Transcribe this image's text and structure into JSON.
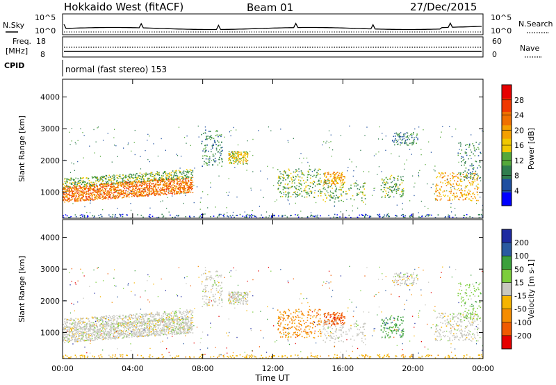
{
  "header": {
    "station": "Hokkaido West (fitACF)",
    "beam": "Beam 01",
    "date": "27/Dec/2015"
  },
  "top_panels": {
    "nsky_label": "N.Sky",
    "nsky_ticks": [
      "10^5",
      "10^0"
    ],
    "nsearch_label": "N.Search",
    "nsearch_ticks": [
      "10^5",
      "10^0"
    ],
    "freq_label_1": "Freq.",
    "freq_label_2": "[MHz]",
    "freq_ticks": [
      "18",
      "8"
    ],
    "nave_label": "Nave",
    "nave_ticks": [
      "60",
      "0"
    ],
    "cpid_label": "CPID",
    "cpid_text": "normal (fast stereo) 153"
  },
  "colors": {
    "power": [
      "#0000ff",
      "#1e4fa0",
      "#2f7d4e",
      "#55a83a",
      "#f0c800",
      "#f5a000",
      "#f07000",
      "#f03800",
      "#e60000"
    ],
    "velocity": [
      "#e60000",
      "#f05a00",
      "#f58c00",
      "#f5b400",
      "#c8c8c0",
      "#7ccd3c",
      "#3ca03c",
      "#2a5aa0",
      "#1e2aa0"
    ]
  },
  "chart_data": [
    {
      "type": "heatmap",
      "name": "power",
      "xlabel": "",
      "ylabel": "Slant Range [km]",
      "x_ticks": [
        "00:00",
        "04:00",
        "08:00",
        "12:00",
        "16:00",
        "20:00",
        "00:00"
      ],
      "y_ticks": [
        1000,
        2000,
        3000,
        4000
      ],
      "ylim": [
        180,
        4560
      ],
      "colorbar_label": "Power [dB]",
      "colorbar_ticks": [
        4,
        8,
        12,
        16,
        20,
        24,
        28
      ],
      "colorbar_range": [
        0,
        32
      ]
    },
    {
      "type": "heatmap",
      "name": "velocity",
      "xlabel": "Time UT",
      "ylabel": "Slant Range [km]",
      "x_ticks": [
        "00:00",
        "04:00",
        "08:00",
        "12:00",
        "16:00",
        "20:00",
        "00:00"
      ],
      "y_ticks": [
        1000,
        2000,
        3000,
        4000
      ],
      "ylim": [
        180,
        4560
      ],
      "colorbar_label": "Velocity [m s-1]",
      "colorbar_ticks": [
        -200,
        -100,
        -50,
        -15,
        15,
        50,
        100,
        200
      ]
    }
  ]
}
